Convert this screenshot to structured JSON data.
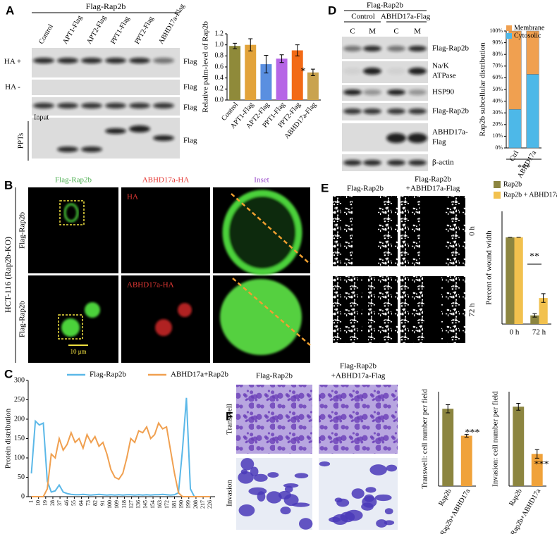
{
  "panels": {
    "A": {
      "letter": "A",
      "construct": "Flag-Rap2b",
      "lanes": [
        "Control",
        "APT1-Flag",
        "APT2-Flag",
        "PPT1-Flag",
        "PPT2-Flag",
        "ABHD17a-Flag"
      ],
      "rows": [
        "HA +",
        "HA -",
        "Input",
        "PPTs"
      ],
      "tags": [
        "Flag",
        "Flag",
        "Flag",
        "Flag"
      ]
    },
    "B": {
      "letter": "B",
      "columns": [
        "Flag-Rap2b",
        "ABHD17a-HA",
        "Inset"
      ],
      "cell_line": "HCT-116 (Rap2b-KO)",
      "rows": [
        "Flag-Rap2b",
        "Flag-Rap2b"
      ],
      "channel_labels": [
        "HA",
        "ABHD17a-HA"
      ],
      "scale_bar": "10 μm"
    },
    "C": {
      "letter": "C"
    },
    "D": {
      "letter": "D",
      "construct": "Flag-Rap2b",
      "groups": [
        "Control",
        "ABHD17a-Flag"
      ],
      "fractions": [
        "C",
        "M",
        "C",
        "M"
      ],
      "markers": [
        [
          "Flag-Rap2b"
        ],
        [
          "Na/K",
          "ATPase"
        ],
        [
          "HSP90"
        ],
        [
          "Flag-Rap2b"
        ],
        [
          "ABHD17a-",
          "Flag"
        ],
        [
          "β-actin"
        ]
      ]
    },
    "E": {
      "letter": "E",
      "columns": [
        [
          "Flag-Rap2b"
        ],
        [
          "Flag-Rap2b",
          "+ABHD17a-Flag"
        ]
      ],
      "rows": [
        "0 h",
        "72 h"
      ]
    },
    "F": {
      "letter": "F",
      "columns": [
        [
          "Flag-Rap2b"
        ],
        [
          "Flag-Rap2b",
          "+ABHD17a-Flag"
        ]
      ],
      "rows": [
        "Transwell",
        "Invasion"
      ]
    }
  },
  "chart_data": [
    {
      "type": "bar",
      "ylabel": "Relative palm-level of Rap2b",
      "categories": [
        "Control",
        "APT1-Flag",
        "APT2-Flag",
        "PPT1-Flag",
        "PPT2-Flag",
        "ABHD17a-Flag"
      ],
      "values": [
        0.98,
        1.0,
        0.65,
        0.75,
        0.9,
        0.5
      ],
      "errors": [
        0.05,
        0.11,
        0.16,
        0.07,
        0.1,
        0.06
      ],
      "colors": [
        "#8f8a3a",
        "#e2a33a",
        "#5a8fe0",
        "#b666e6",
        "#f26a16",
        "#c9a34f"
      ],
      "ylim": [
        0,
        1.2
      ],
      "yticks": [
        {
          "value": 0,
          "label": "0.0"
        },
        0.2,
        0.4,
        0.6,
        0.8,
        {
          "value": 1,
          "label": "1.0"
        },
        1.2
      ],
      "annotation": "*"
    },
    {
      "type": "stacked_bar",
      "ylabel": "Rap2b subcellular distribution",
      "categories": [
        "Ctrl",
        "ABHD17a"
      ],
      "series": [
        {
          "name": "Cytosolic",
          "color": "#4db8e8",
          "values": [
            33,
            63
          ]
        },
        {
          "name": "Membrane",
          "color": "#f0a050",
          "values": [
            67,
            37
          ]
        }
      ],
      "ylim": [
        0,
        100
      ],
      "yticks": [
        {
          "value": 0,
          "label": "0%"
        },
        {
          "value": 10,
          "label": "10%"
        },
        {
          "value": 20,
          "label": "20%"
        },
        {
          "value": 30,
          "label": "30%"
        },
        {
          "value": 40,
          "label": "40%"
        },
        {
          "value": 50,
          "label": "50%"
        },
        {
          "value": 60,
          "label": "60%"
        },
        {
          "value": 70,
          "label": "70%"
        },
        {
          "value": 80,
          "label": "80%"
        },
        {
          "value": 90,
          "label": "90%"
        },
        {
          "value": 100,
          "label": "100%"
        }
      ],
      "annotation": "***"
    },
    {
      "type": "line",
      "ylabel": "Protein distribution",
      "x": [
        1,
        6,
        11,
        16,
        21,
        26,
        31,
        36,
        41,
        46,
        51,
        56,
        61,
        66,
        71,
        76,
        81,
        86,
        91,
        96,
        101,
        106,
        111,
        116,
        121,
        126,
        131,
        136,
        141,
        146,
        151,
        156,
        161,
        166,
        171,
        176,
        181,
        186,
        191,
        196,
        201,
        206,
        211,
        216,
        221,
        226
      ],
      "series": [
        {
          "name": "Flag-Rap2b",
          "color": "#5bb8e8",
          "values": [
            60,
            195,
            185,
            190,
            40,
            12,
            15,
            30,
            12,
            8,
            6,
            5,
            5,
            6,
            5,
            4,
            5,
            6,
            5,
            4,
            5,
            4,
            5,
            4,
            5,
            5,
            4,
            5,
            4,
            5,
            4,
            5,
            5,
            6,
            5,
            4,
            5,
            10,
            120,
            255,
            20,
            0,
            0,
            0,
            0,
            0
          ]
        },
        {
          "name": "ABHD17a+Rap2b",
          "color": "#f0a050",
          "values": [
            0,
            0,
            0,
            0,
            20,
            110,
            100,
            150,
            120,
            135,
            165,
            140,
            150,
            125,
            160,
            140,
            155,
            130,
            140,
            110,
            70,
            50,
            45,
            60,
            100,
            150,
            140,
            170,
            165,
            180,
            150,
            160,
            190,
            175,
            180,
            120,
            60,
            10,
            0,
            0,
            0,
            0,
            0,
            0,
            0,
            0
          ]
        }
      ],
      "xlim": [
        -3,
        232
      ],
      "xticks": [
        1,
        10,
        19,
        28,
        37,
        46,
        55,
        64,
        73,
        82,
        91,
        100,
        109,
        118,
        127,
        136,
        145,
        154,
        163,
        172,
        181,
        190,
        199,
        208,
        217,
        226
      ],
      "ylim": [
        0,
        300
      ],
      "yticks": [
        0,
        50,
        100,
        150,
        200,
        250,
        300
      ]
    },
    {
      "type": "bar",
      "ylabel": "Percent of wound width",
      "categories": [
        "0 h",
        "72 h"
      ],
      "series": [
        {
          "name": "Rap2b",
          "color": "#8c8540",
          "values": [
            100,
            10
          ],
          "errors": [
            0,
            2
          ]
        },
        {
          "name": "Rap2b + ABHD17a",
          "color": "#f2c14e",
          "values": [
            100,
            30
          ],
          "errors": [
            0,
            5
          ]
        }
      ],
      "ylim": [
        0,
        130
      ],
      "annotation": "**"
    },
    {
      "type": "bar",
      "ylabel": "Transwell: cell number per field",
      "categories": [
        "Rap2b",
        "Rap2b+ABHD17a"
      ],
      "values": [
        172,
        112
      ],
      "errors": [
        9,
        3
      ],
      "colors": [
        "#8c8540",
        "#f0a23a"
      ],
      "ylim": [
        0,
        210
      ],
      "annotation": "***"
    },
    {
      "type": "bar",
      "ylabel": "Invasion: cell number per field",
      "categories": [
        "Rap2b",
        "Rap2b+ABHD17a"
      ],
      "values": [
        185,
        75
      ],
      "errors": [
        8,
        10
      ],
      "colors": [
        "#8c8540",
        "#f0a23a"
      ],
      "ylim": [
        0,
        220
      ],
      "annotation": "***"
    }
  ]
}
